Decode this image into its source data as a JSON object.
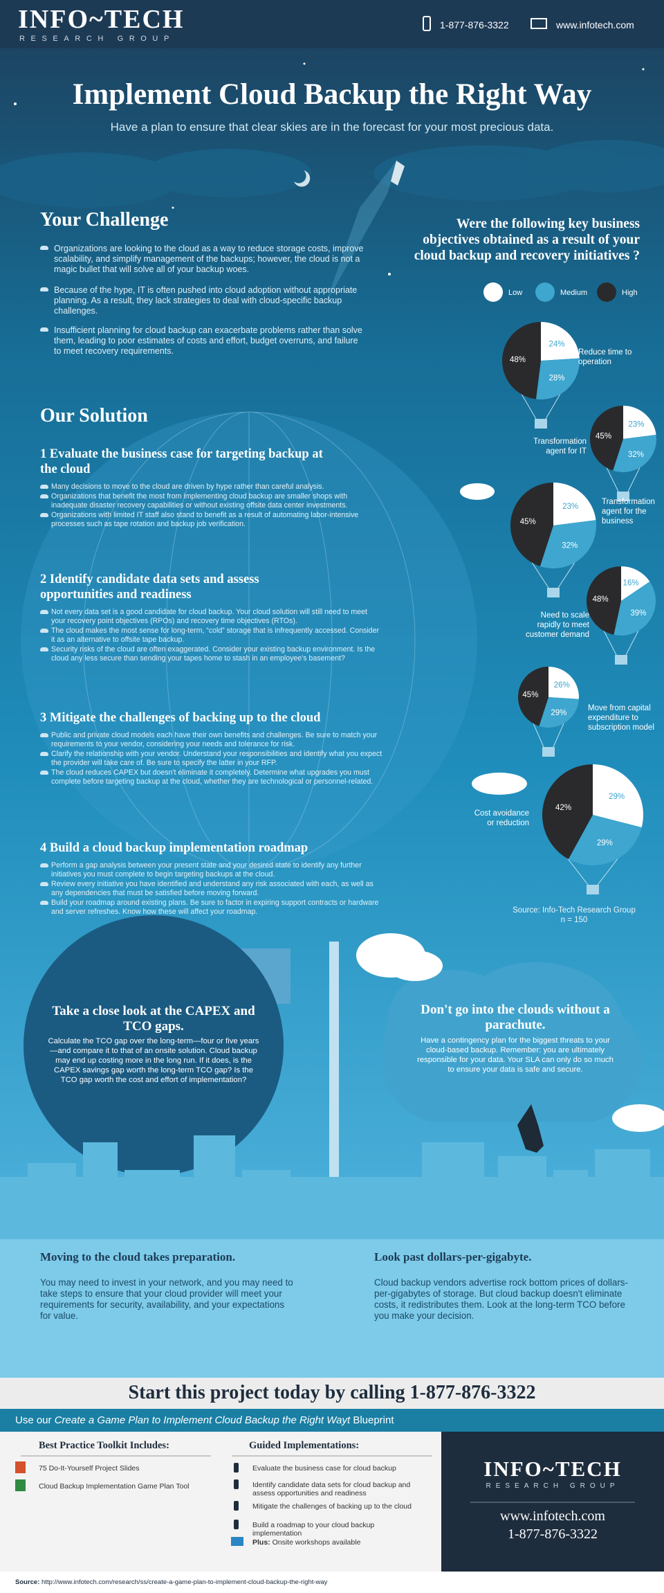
{
  "header": {
    "logo": "INFO~TECH",
    "logo_sub": "RESEARCH GROUP",
    "phone": "1-877-876-3322",
    "website": "www.infotech.com"
  },
  "hero": {
    "title": "Implement Cloud Backup the Right Way",
    "subtitle": "Have a plan to ensure that clear skies are in the forecast for your most precious data."
  },
  "challenge": {
    "heading": "Your Challenge",
    "paragraphs": [
      "Organizations are looking to the cloud as a way to reduce storage costs, improve scalability, and simplify management of the backups; however, the cloud is not a magic bullet that will solve all of your backup woes.",
      "Because of the hype, IT is often pushed into cloud adoption without appropriate planning. As a result, they lack strategies to deal with cloud-specific backup challenges.",
      "Insufficient planning for cloud backup can exacerbate problems rather than solve them, leading to poor estimates of costs and effort, budget overruns, and failure to meet recovery requirements."
    ]
  },
  "survey": {
    "question": "Were the following key business objectives obtained as a result of your cloud backup and recovery initiatives ?",
    "legend": [
      {
        "name": "Low",
        "color": "#ffffff"
      },
      {
        "name": "Medium",
        "color": "#3ea6cf"
      },
      {
        "name": "High",
        "color": "#2a2a2c"
      }
    ],
    "pies": [
      {
        "label": [
          "Reduce time to",
          "operation"
        ],
        "values": [
          24,
          28,
          48
        ],
        "value_labels": [
          "24%",
          "28%",
          "48%"
        ]
      },
      {
        "label": [
          "Transformation",
          "agent for IT"
        ],
        "values": [
          23,
          32,
          45
        ],
        "value_labels": [
          "23%",
          "32%",
          "45%"
        ]
      },
      {
        "label": [
          "Transformation",
          "agent for the",
          "business"
        ],
        "values": [
          23,
          32,
          45
        ],
        "value_labels": [
          "23%",
          "32%",
          "45%"
        ]
      },
      {
        "label": [
          "Need to scale",
          "rapidly to meet",
          "customer  demand"
        ],
        "values": [
          16,
          39,
          48
        ],
        "value_labels": [
          "16%",
          "39%",
          "48%"
        ]
      },
      {
        "label": [
          "Move from capital",
          "expenditure to",
          "subscription model"
        ],
        "values": [
          26,
          29,
          45
        ],
        "value_labels": [
          "26%",
          "29%",
          "45%"
        ]
      },
      {
        "label": [
          "Cost avoidance",
          "or reduction"
        ],
        "values": [
          29,
          29,
          42
        ],
        "value_labels": [
          "29%",
          "29%",
          "42%"
        ]
      }
    ],
    "source": "Source: Info-Tech Research Group",
    "n": "n = 150"
  },
  "solution": {
    "heading": "Our Solution",
    "steps": [
      {
        "title": "1 Evaluate the business case for targeting backup at the cloud",
        "bullets": [
          "Many decisions to move to the cloud are driven by hype rather than careful analysis.",
          "Organizations that benefit the most from implementing cloud backup are smaller shops with inadequate disaster recovery capabilities or without existing offsite data center investments.",
          "Organizations with limited IT staff also stand to benefit as a result of automating labor-intensive processes such as tape rotation and backup job verification."
        ]
      },
      {
        "title": "2 Identify candidate data sets and assess opportunities and readiness",
        "bullets": [
          "Not every data set is a good candidate for cloud backup. Your cloud solution will still need to meet your recovery point objectives (RPOs) and recovery time objectives (RTOs).",
          "The cloud makes the most sense for long-term, “cold” storage that is infrequently accessed. Consider it as an alternative to offsite tape backup.",
          "Security risks of the cloud are often exaggerated. Consider your existing backup environment. Is the cloud any less secure than sending your tapes home to stash in an employee's basement?"
        ]
      },
      {
        "title": "3 Mitigate the challenges of backing up to the cloud",
        "bullets": [
          "Public and private cloud models each have their own benefits and challenges. Be sure to match your requirements to your vendor, considering your needs and tolerance for risk.",
          "Clarify the relationship with your vendor. Understand your responsibilities and identify what you expect the provider will take care of. Be sure to specify the latter in your RFP.",
          "The cloud reduces CAPEX but doesn't eliminate it completely. Determine what upgrades you must complete before targeting backup at the cloud, whether they are technological or personnel-related."
        ]
      },
      {
        "title": "4 Build a cloud backup implementation roadmap",
        "bullets": [
          "Perform a gap analysis between your present state and your desired state to identify any further initiatives you must complete to begin targeting backups at the cloud.",
          "Review every initiative you have identified and understand any risk associated with each, as well as any dependencies that must be satisfied before moving forward.",
          "Build your roadmap around existing plans. Be sure to factor in expiring support contracts or hardware and server refreshes. Know how these will affect your roadmap."
        ]
      }
    ]
  },
  "callouts": [
    {
      "title": "Take a close look at the CAPEX and TCO gaps.",
      "body": "Calculate the TCO gap over the long-term—four or five years—and compare it to that of an onsite solution. Cloud backup may end up costing more in the long run. If it does, is the CAPEX savings gap worth the long-term TCO gap? Is the TCO gap worth the cost and effort of implementation?"
    },
    {
      "title": "Don't go into the clouds without a parachute.",
      "body": "Have a contingency plan for the biggest threats to your cloud-based backup. Remember: you are ultimately responsible for your data. Your SLA can only do so much to ensure your data is safe and secure."
    }
  ],
  "tips": [
    {
      "heading": "Moving to the cloud takes preparation.",
      "body": "You may need to invest in your network, and you may need to take steps to ensure that your cloud provider will meet your requirements for security, availability, and your expectations for value."
    },
    {
      "heading": "Look past dollars-per-gigabyte.",
      "body": "Cloud backup vendors advertise rock bottom prices of dollars-per-gigabytes of storage. But cloud backup doesn't eliminate costs, it redistributes them. Look at the long-term TCO before you make your decision."
    }
  ],
  "cta": {
    "text": "Start this project today by calling 1-877-876-3322"
  },
  "blueprint": {
    "prefix": "Use our",
    "title": "Create a Game Plan to Implement Cloud Backup the Right Wayt",
    "suffix": "Blueprint"
  },
  "toolkit": {
    "heading": "Best Practice Toolkit Includes:",
    "items": [
      "75 Do-It-Yourself Project Slides",
      "Cloud Backup Implementation Game Plan Tool"
    ]
  },
  "guided": {
    "heading": "Guided Implementations:",
    "items": [
      "Evaluate the business case for cloud backup",
      "Identify candidate data sets for cloud backup and assess opportunities and readiness",
      "Mitigate the challenges of backing up to the cloud",
      "Build a roadmap to your cloud backup implementation"
    ],
    "plus_label": "Plus:",
    "plus_text": "Onsite workshops available"
  },
  "contact": {
    "logo": "INFO~TECH",
    "logo_sub": "RESEARCH GROUP",
    "website": "www.infotech.com",
    "phone": "1-877-876-3322"
  },
  "footer": {
    "label": "Source:",
    "url": "http://www.infotech.com/research/ss/create-a-game-plan-to-implement-cloud-backup-the-right-way"
  }
}
